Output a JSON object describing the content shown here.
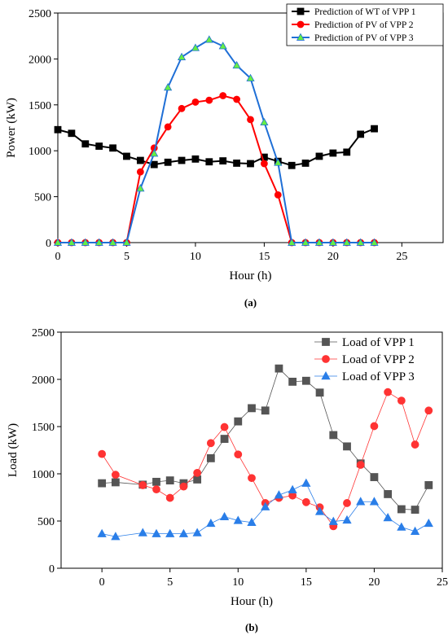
{
  "chart_data": [
    {
      "type": "line",
      "sublabel": "(a)",
      "xlabel": "Hour (h)",
      "ylabel": "Power (kW)",
      "xlim": [
        0,
        28
      ],
      "ylim": [
        0,
        2500
      ],
      "xticks": [
        0,
        5,
        10,
        15,
        20,
        25
      ],
      "yticks": [
        0,
        500,
        1000,
        1500,
        2000,
        2500
      ],
      "grid": false,
      "legend_position": "top-right",
      "x": [
        0,
        1,
        2,
        3,
        4,
        5,
        6,
        7,
        8,
        9,
        10,
        11,
        12,
        13,
        14,
        15,
        16,
        17,
        18,
        19,
        20,
        21,
        22,
        23
      ],
      "series": [
        {
          "name": "Prediction of WT of VPP 1",
          "color": "#000000",
          "marker": "square",
          "values": [
            1230,
            1190,
            1075,
            1050,
            1030,
            940,
            895,
            850,
            875,
            895,
            910,
            880,
            890,
            865,
            860,
            930,
            885,
            840,
            865,
            940,
            975,
            985,
            1180,
            1240
          ]
        },
        {
          "name": "Prediction of  PV of VPP 2",
          "color": "#ff0000",
          "marker": "circle",
          "values": [
            0,
            0,
            0,
            0,
            0,
            0,
            770,
            1030,
            1260,
            1460,
            1530,
            1550,
            1600,
            1560,
            1340,
            860,
            520,
            0,
            0,
            0,
            0,
            0,
            0,
            0
          ]
        },
        {
          "name": "Prediction of  PV of VPP 3",
          "color": "#1f6fd6",
          "marker": "triangle",
          "marker_color": "#66ee44",
          "values": [
            0,
            0,
            0,
            0,
            0,
            0,
            590,
            970,
            1690,
            2020,
            2120,
            2210,
            2140,
            1930,
            1790,
            1310,
            870,
            0,
            0,
            0,
            0,
            0,
            0,
            0
          ]
        }
      ]
    },
    {
      "type": "line",
      "sublabel": "(b)",
      "xlabel": "Hour (h)",
      "ylabel": "Load (kW)",
      "xlim": [
        -3,
        25
      ],
      "ylim": [
        0,
        2500
      ],
      "xticks": [
        0,
        5,
        10,
        15,
        20,
        25
      ],
      "yticks": [
        0,
        500,
        1000,
        1500,
        2000,
        2500
      ],
      "grid": false,
      "legend_position": "top-right",
      "x": [
        0,
        1,
        2,
        3,
        4,
        5,
        6,
        7,
        8,
        9,
        10,
        11,
        12,
        13,
        14,
        15,
        16,
        17,
        18,
        19,
        20,
        21,
        22,
        23,
        24
      ],
      "series": [
        {
          "name": "Load of VPP 1",
          "color": "#555555",
          "marker": "square",
          "values": [
            900,
            910,
            null,
            885,
            915,
            930,
            900,
            940,
            1165,
            1370,
            1555,
            1695,
            1670,
            2115,
            1975,
            1985,
            1860,
            1410,
            1290,
            1110,
            965,
            785,
            625,
            620,
            880
          ]
        },
        {
          "name": "Load of VPP 2",
          "color": "#ff3333",
          "marker": "circle",
          "values": [
            1210,
            990,
            null,
            880,
            835,
            745,
            865,
            1010,
            1325,
            1495,
            1205,
            955,
            690,
            745,
            770,
            700,
            645,
            445,
            690,
            1095,
            1505,
            1865,
            1775,
            1310,
            1670
          ]
        },
        {
          "name": "Load of VPP 3",
          "color": "#2a7ee8",
          "marker": "triangle",
          "values": [
            365,
            335,
            null,
            375,
            365,
            365,
            365,
            375,
            475,
            545,
            505,
            485,
            650,
            775,
            830,
            900,
            600,
            495,
            510,
            705,
            705,
            535,
            435,
            390,
            475
          ]
        }
      ]
    }
  ]
}
